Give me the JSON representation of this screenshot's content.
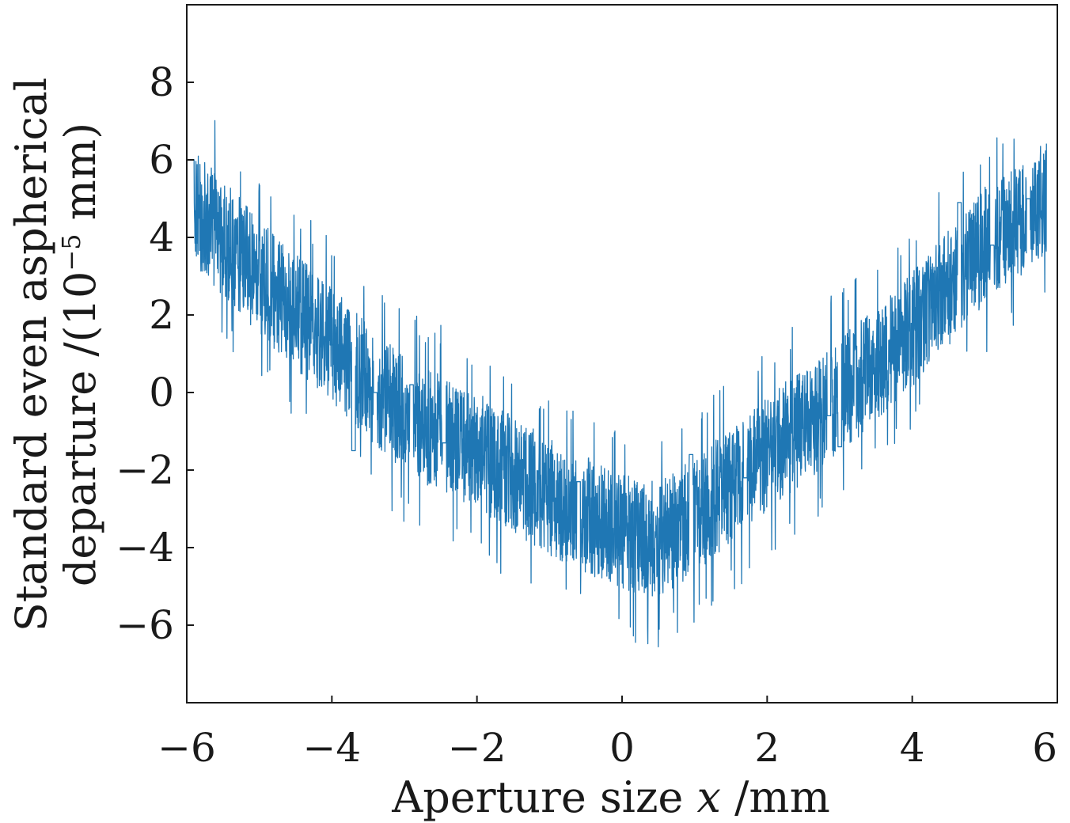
{
  "chart_data": {
    "type": "line",
    "title": "",
    "xlabel": {
      "prefix": "Aperture size ",
      "variable": "x",
      "suffix": " /mm"
    },
    "ylabel": {
      "line1": "Standard even aspherical",
      "line2_prefix": "departure /(10",
      "line2_exponent": "−5",
      "line2_suffix": " mm)"
    },
    "xlim": [
      -6,
      6
    ],
    "ylim": [
      -8,
      10
    ],
    "xticks": [
      -6,
      -4,
      -2,
      0,
      2,
      4,
      6
    ],
    "xtick_labels": [
      "−6",
      "−4",
      "−2",
      "0",
      "2",
      "4",
      "6"
    ],
    "yticks": [
      -6,
      -4,
      -2,
      0,
      2,
      4,
      6,
      8
    ],
    "ytick_labels": [
      "−6",
      "−4",
      "−2",
      "0",
      "2",
      "4",
      "6",
      "8"
    ],
    "grid": false,
    "series": [
      {
        "name": "Standard even aspherical departure",
        "color": "#1f77b4",
        "description": "Dense noisy signal forming a V/U shape: mean ~4.8 at x=-6, minimum ~-3.8 near x=0.3, rising to ~5 at x=6; noise half-amplitude about 1.5 with spikes to about 2.8",
        "x_range": [
          -5.9,
          5.85
        ],
        "n_points": 3600,
        "trend": {
          "x": [
            -5.9,
            -5.0,
            -4.0,
            -3.0,
            -2.0,
            -1.0,
            0.0,
            0.5,
            1.0,
            2.0,
            3.0,
            4.0,
            5.0,
            5.85
          ],
          "y": [
            4.8,
            3.0,
            1.2,
            -0.6,
            -1.5,
            -2.7,
            -3.6,
            -3.8,
            -3.2,
            -1.6,
            -0.1,
            1.6,
            3.8,
            5.0
          ]
        },
        "noise_half_amplitude": 1.5,
        "spike_amplitude": 2.8,
        "gaps": [
          {
            "x": -3.7,
            "y": -1.5
          },
          {
            "x": -3.4,
            "y": 0.0
          },
          {
            "x": -2.9,
            "y": 0.2
          },
          {
            "x": -2.45,
            "y": -1.3
          },
          {
            "x": -0.6,
            "y": -2.3
          },
          {
            "x": 0.95,
            "y": -1.6
          },
          {
            "x": 1.7,
            "y": -2.2
          },
          {
            "x": 2.85,
            "y": -0.6
          },
          {
            "x": 3.0,
            "y": -1.4
          },
          {
            "x": 4.65,
            "y": 4.9
          },
          {
            "x": 5.1,
            "y": 3.8
          },
          {
            "x": 5.6,
            "y": 5.0
          }
        ]
      }
    ]
  }
}
